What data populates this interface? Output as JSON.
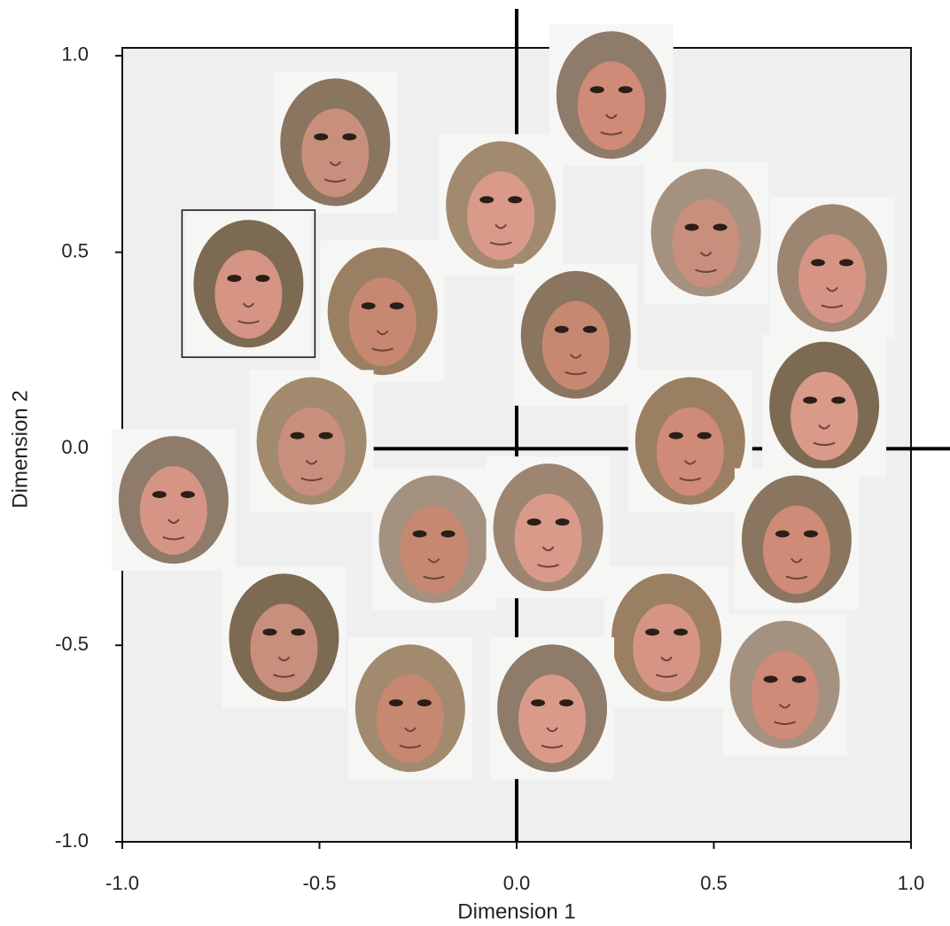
{
  "chart_data": {
    "type": "scatter",
    "xlabel": "Dimension 1",
    "ylabel": "Dimension 2",
    "xlim": [
      -1.0,
      1.0
    ],
    "ylim": [
      -1.0,
      1.02
    ],
    "xticks": [
      {
        "value": -1.0,
        "label": "-1.0"
      },
      -0.5,
      {
        "value": 0,
        "label": "0.0"
      },
      0.5,
      {
        "value": 1.0,
        "label": "1.0"
      }
    ],
    "yticks": [
      {
        "value": -1.0,
        "label": "-1.0"
      },
      -0.5,
      {
        "value": 0,
        "label": "0.0"
      },
      0.5,
      {
        "value": 1.0,
        "label": "1.0"
      }
    ],
    "x": [
      -0.46,
      -0.68,
      -0.34,
      -0.04,
      0.24,
      0.48,
      0.8,
      0.15,
      0.78,
      0.44,
      -0.52,
      -0.87,
      -0.21,
      0.08,
      0.71,
      -0.59,
      0.38,
      -0.27,
      0.09,
      0.68
    ],
    "y": [
      0.78,
      0.42,
      0.35,
      0.62,
      0.9,
      0.55,
      0.46,
      0.29,
      0.11,
      0.02,
      0.02,
      -0.13,
      -0.23,
      -0.2,
      -0.23,
      -0.48,
      -0.48,
      -0.66,
      -0.66,
      -0.6
    ],
    "highlighted_point": 1,
    "background": "#efefef"
  }
}
